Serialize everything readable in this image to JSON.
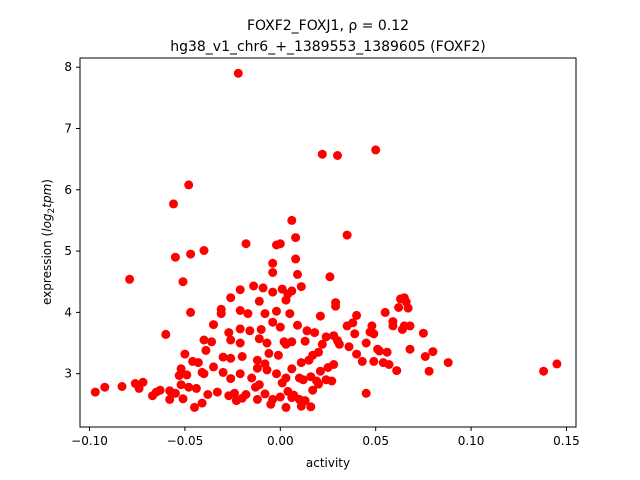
{
  "chart_data": {
    "type": "scatter",
    "title_line1": "FOXF2_FOXJ1, ρ = 0.12",
    "title_line2": "hg38_v1_chr6_+_1389553_1389605 (FOXF2)",
    "xlabel": "activity",
    "ylabel_prefix": "expression (",
    "ylabel_math_log": "log",
    "ylabel_math_sub": "2",
    "ylabel_math_tpm": "tpm",
    "ylabel_suffix": ")",
    "xlim": [
      -0.105,
      0.155
    ],
    "ylim": [
      2.13,
      8.15
    ],
    "xticks": [
      -0.1,
      -0.05,
      0.0,
      0.05,
      0.1,
      0.15
    ],
    "xtick_labels": [
      "−0.10",
      "−0.05",
      "0.00",
      "0.05",
      "0.10",
      "0.15"
    ],
    "yticks": [
      3,
      4,
      5,
      6,
      7,
      8
    ],
    "ytick_labels": [
      "3",
      "4",
      "5",
      "6",
      "7",
      "8"
    ],
    "marker_color": "#ff0000",
    "points": [
      [
        -0.022,
        7.9
      ],
      [
        0.05,
        6.65
      ],
      [
        0.022,
        6.58
      ],
      [
        0.03,
        6.56
      ],
      [
        -0.048,
        6.08
      ],
      [
        -0.056,
        5.77
      ],
      [
        0.006,
        5.5
      ],
      [
        0.035,
        5.26
      ],
      [
        0.008,
        5.22
      ],
      [
        -0.018,
        5.12
      ],
      [
        -0.002,
        5.1
      ],
      [
        0.0,
        5.12
      ],
      [
        -0.04,
        5.01
      ],
      [
        -0.047,
        4.95
      ],
      [
        -0.055,
        4.9
      ],
      [
        0.008,
        4.87
      ],
      [
        -0.004,
        4.8
      ],
      [
        -0.004,
        4.65
      ],
      [
        0.009,
        4.62
      ],
      [
        0.026,
        4.58
      ],
      [
        -0.079,
        4.54
      ],
      [
        -0.051,
        4.5
      ],
      [
        -0.014,
        4.43
      ],
      [
        -0.009,
        4.4
      ],
      [
        -0.004,
        4.33
      ],
      [
        0.006,
        4.35
      ],
      [
        0.011,
        4.42
      ],
      [
        -0.021,
        4.37
      ],
      [
        -0.026,
        4.24
      ],
      [
        0.001,
        4.38
      ],
      [
        0.004,
        4.3
      ],
      [
        0.003,
        4.2
      ],
      [
        -0.011,
        4.18
      ],
      [
        0.029,
        4.16
      ],
      [
        0.029,
        4.1
      ],
      [
        0.063,
        4.22
      ],
      [
        0.065,
        4.24
      ],
      [
        0.066,
        4.17
      ],
      [
        0.062,
        4.08
      ],
      [
        0.067,
        4.07
      ],
      [
        0.055,
        4.0
      ],
      [
        0.059,
        3.85
      ],
      [
        -0.047,
        4.0
      ],
      [
        -0.031,
        4.05
      ],
      [
        -0.031,
        3.98
      ],
      [
        -0.021,
        4.03
      ],
      [
        -0.017,
        3.98
      ],
      [
        -0.008,
        3.98
      ],
      [
        -0.002,
        4.02
      ],
      [
        0.005,
        3.98
      ],
      [
        0.021,
        3.94
      ],
      [
        0.04,
        3.95
      ],
      [
        -0.021,
        3.73
      ],
      [
        -0.027,
        3.67
      ],
      [
        -0.016,
        3.7
      ],
      [
        -0.01,
        3.72
      ],
      [
        -0.004,
        3.84
      ],
      [
        0.0,
        3.76
      ],
      [
        0.009,
        3.79
      ],
      [
        0.014,
        3.7
      ],
      [
        0.018,
        3.67
      ],
      [
        0.024,
        3.6
      ],
      [
        0.028,
        3.62
      ],
      [
        0.035,
        3.78
      ],
      [
        0.038,
        3.83
      ],
      [
        0.047,
        3.68
      ],
      [
        0.049,
        3.65
      ],
      [
        0.064,
        3.72
      ],
      [
        0.065,
        3.78
      ],
      [
        0.059,
        3.78
      ],
      [
        0.068,
        3.78
      ],
      [
        0.075,
        3.66
      ],
      [
        -0.06,
        3.64
      ],
      [
        -0.04,
        3.55
      ],
      [
        -0.036,
        3.52
      ],
      [
        -0.026,
        3.55
      ],
      [
        -0.021,
        3.5
      ],
      [
        -0.011,
        3.57
      ],
      [
        -0.007,
        3.5
      ],
      [
        0.002,
        3.52
      ],
      [
        0.006,
        3.52
      ],
      [
        0.013,
        3.53
      ],
      [
        0.022,
        3.48
      ],
      [
        0.03,
        3.54
      ],
      [
        0.039,
        3.65
      ],
      [
        0.036,
        3.44
      ],
      [
        0.045,
        3.5
      ],
      [
        0.051,
        3.4
      ],
      [
        0.056,
        3.35
      ],
      [
        0.052,
        3.37
      ],
      [
        0.068,
        3.4
      ],
      [
        0.08,
        3.36
      ],
      [
        0.076,
        3.28
      ],
      [
        -0.05,
        3.32
      ],
      [
        -0.046,
        3.2
      ],
      [
        -0.039,
        3.38
      ],
      [
        -0.043,
        3.18
      ],
      [
        -0.03,
        3.27
      ],
      [
        -0.026,
        3.25
      ],
      [
        -0.02,
        3.28
      ],
      [
        -0.012,
        3.22
      ],
      [
        -0.006,
        3.33
      ],
      [
        -0.001,
        3.3
      ],
      [
        0.011,
        3.18
      ],
      [
        0.015,
        3.22
      ],
      [
        0.017,
        3.3
      ],
      [
        0.02,
        3.35
      ],
      [
        0.025,
        3.1
      ],
      [
        0.028,
        3.15
      ],
      [
        0.04,
        3.32
      ],
      [
        0.043,
        3.2
      ],
      [
        0.049,
        3.2
      ],
      [
        0.054,
        3.18
      ],
      [
        0.057,
        3.15
      ],
      [
        0.088,
        3.18
      ],
      [
        0.145,
        3.16
      ],
      [
        0.138,
        3.04
      ],
      [
        0.061,
        3.05
      ],
      [
        0.078,
        3.04
      ],
      [
        -0.052,
        3.08
      ],
      [
        -0.053,
        2.97
      ],
      [
        -0.041,
        3.02
      ],
      [
        -0.04,
        3.0
      ],
      [
        -0.035,
        3.11
      ],
      [
        -0.03,
        3.02
      ],
      [
        -0.026,
        2.92
      ],
      [
        -0.021,
        3.0
      ],
      [
        -0.015,
        2.93
      ],
      [
        -0.012,
        3.09
      ],
      [
        -0.007,
        3.06
      ],
      [
        -0.002,
        3.0
      ],
      [
        0.003,
        2.93
      ],
      [
        0.006,
        3.08
      ],
      [
        0.01,
        2.93
      ],
      [
        0.012,
        2.9
      ],
      [
        0.016,
        2.95
      ],
      [
        0.021,
        3.04
      ],
      [
        0.024,
        2.9
      ],
      [
        0.027,
        2.88
      ],
      [
        -0.092,
        2.78
      ],
      [
        -0.083,
        2.79
      ],
      [
        -0.076,
        2.84
      ],
      [
        -0.072,
        2.86
      ],
      [
        -0.074,
        2.76
      ],
      [
        -0.065,
        2.7
      ],
      [
        -0.063,
        2.73
      ],
      [
        -0.058,
        2.72
      ],
      [
        -0.052,
        2.82
      ],
      [
        -0.055,
        2.68
      ],
      [
        -0.048,
        2.78
      ],
      [
        -0.044,
        2.76
      ],
      [
        -0.038,
        2.66
      ],
      [
        -0.033,
        2.7
      ],
      [
        -0.027,
        2.64
      ],
      [
        -0.024,
        2.68
      ],
      [
        -0.02,
        2.6
      ],
      [
        -0.013,
        2.78
      ],
      [
        -0.011,
        2.82
      ],
      [
        -0.008,
        2.67
      ],
      [
        -0.004,
        2.58
      ],
      [
        0.001,
        2.85
      ],
      [
        0.004,
        2.71
      ],
      [
        0.007,
        2.65
      ],
      [
        0.01,
        2.58
      ],
      [
        0.013,
        2.56
      ],
      [
        0.017,
        2.73
      ],
      [
        0.019,
        2.88
      ],
      [
        0.02,
        2.83
      ],
      [
        0.045,
        2.68
      ],
      [
        -0.097,
        2.7
      ],
      [
        -0.067,
        2.64
      ],
      [
        -0.058,
        2.58
      ],
      [
        -0.051,
        2.59
      ],
      [
        -0.045,
        2.45
      ],
      [
        -0.041,
        2.52
      ],
      [
        -0.023,
        2.56
      ],
      [
        -0.018,
        2.66
      ],
      [
        -0.012,
        2.58
      ],
      [
        -0.005,
        2.5
      ],
      [
        0.0,
        2.62
      ],
      [
        0.003,
        2.45
      ],
      [
        0.006,
        2.61
      ],
      [
        0.011,
        2.47
      ],
      [
        0.016,
        2.46
      ],
      [
        -0.049,
        2.98
      ],
      [
        -0.008,
        3.16
      ],
      [
        0.031,
        3.48
      ],
      [
        -0.035,
        3.8
      ],
      [
        0.048,
        3.78
      ],
      [
        0.003,
        3.48
      ]
    ]
  }
}
